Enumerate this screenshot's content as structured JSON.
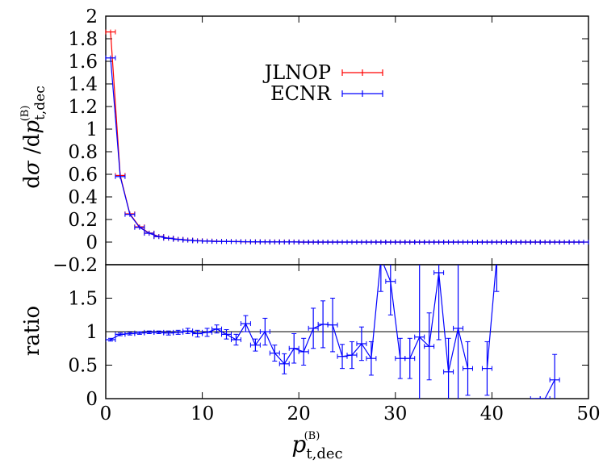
{
  "chart_data": [
    {
      "type": "line",
      "panel": "main",
      "ylabel_parts": {
        "pre": "d",
        "sigma": "σ",
        "mid": " /d",
        "p": "p",
        "sub": "t,dec",
        "sup": "(B)"
      },
      "xlim": [
        0,
        50
      ],
      "ylim": [
        -0.2,
        2
      ],
      "yticks": [
        -0.2,
        0,
        0.2,
        0.4,
        0.6,
        0.8,
        1,
        1.2,
        1.4,
        1.6,
        1.8,
        2
      ],
      "ytick_labels": [
        "−0.2",
        "0",
        "0.2",
        "0.4",
        "0.6",
        "0.8",
        "1",
        "1.2",
        "1.4",
        "1.6",
        "1.8",
        "2"
      ],
      "legend_position": "top-right",
      "series": [
        {
          "name": "JLNOP",
          "color": "#ff0000",
          "x": [
            0.5,
            1.5,
            2.5,
            3.5,
            4.5,
            5.5,
            6.5,
            7.5,
            8.5,
            9.5,
            10.5,
            11.5,
            12.5,
            13.5,
            14.5,
            15.5,
            16.5,
            17.5,
            18.5,
            19.5,
            20.5,
            21.5,
            22.5,
            23.5,
            24.5,
            25.5,
            26.5,
            27.5,
            28.5,
            29.5,
            30.5,
            31.5,
            32.5,
            33.5,
            34.5,
            35.5,
            36.5,
            37.5,
            38.5,
            39.5,
            40.5,
            41.5,
            42.5,
            43.5,
            44.5,
            45.5,
            46.5,
            47.5,
            48.5,
            49.5
          ],
          "y": [
            1.86,
            0.59,
            0.25,
            0.135,
            0.08,
            0.05,
            0.035,
            0.025,
            0.018,
            0.012,
            0.009,
            0.007,
            0.005,
            0.004,
            0.003,
            0.0025,
            0.002,
            0.0015,
            0.001,
            0.001,
            0,
            0,
            0,
            0,
            0,
            0,
            0,
            0,
            0,
            0,
            0,
            0,
            0,
            0,
            0,
            0,
            0,
            0,
            0,
            0,
            0,
            0,
            0,
            0,
            0,
            0,
            0,
            0,
            0,
            0
          ]
        },
        {
          "name": "ECNR",
          "color": "#0000ff",
          "x": [
            0.5,
            1.5,
            2.5,
            3.5,
            4.5,
            5.5,
            6.5,
            7.5,
            8.5,
            9.5,
            10.5,
            11.5,
            12.5,
            13.5,
            14.5,
            15.5,
            16.5,
            17.5,
            18.5,
            19.5,
            20.5,
            21.5,
            22.5,
            23.5,
            24.5,
            25.5,
            26.5,
            27.5,
            28.5,
            29.5,
            30.5,
            31.5,
            32.5,
            33.5,
            34.5,
            35.5,
            36.5,
            37.5,
            38.5,
            39.5,
            40.5,
            41.5,
            42.5,
            43.5,
            44.5,
            45.5,
            46.5,
            47.5,
            48.5,
            49.5
          ],
          "y": [
            1.63,
            0.58,
            0.245,
            0.13,
            0.078,
            0.048,
            0.034,
            0.024,
            0.017,
            0.011,
            0.008,
            0.006,
            0.005,
            0.004,
            0.003,
            0.0025,
            0.002,
            0.0015,
            0.001,
            0.001,
            0,
            0,
            0,
            0,
            0,
            0,
            0,
            0,
            0,
            0,
            0,
            0,
            0,
            0,
            0,
            0,
            0,
            0,
            0,
            0,
            0,
            0,
            0,
            0,
            0,
            0,
            0,
            0,
            0,
            0
          ]
        }
      ]
    },
    {
      "type": "line",
      "panel": "ratio",
      "ylabel": "ratio",
      "xlabel_parts": {
        "p": "p",
        "sub": "t,dec",
        "sup": "(B)"
      },
      "xlim": [
        0,
        50
      ],
      "ylim": [
        0,
        2
      ],
      "xticks": [
        0,
        10,
        20,
        30,
        40,
        50
      ],
      "xtick_labels": [
        "0",
        "10",
        "20",
        "30",
        "40",
        "50"
      ],
      "yticks": [
        0,
        0.5,
        1,
        1.5
      ],
      "ytick_labels": [
        "0",
        "0.5",
        "1",
        "1.5"
      ],
      "reference_line": 1,
      "series": [
        {
          "name": "ratio",
          "color": "#0000ff",
          "points": [
            {
              "x": 0.5,
              "y": 0.88,
              "e": 0.02
            },
            {
              "x": 1.5,
              "y": 0.96,
              "e": 0.02
            },
            {
              "x": 2.5,
              "y": 0.97,
              "e": 0.02
            },
            {
              "x": 3.5,
              "y": 0.98,
              "e": 0.02
            },
            {
              "x": 4.5,
              "y": 0.99,
              "e": 0.02
            },
            {
              "x": 5.5,
              "y": 0.99,
              "e": 0.02
            },
            {
              "x": 6.5,
              "y": 0.98,
              "e": 0.03
            },
            {
              "x": 7.5,
              "y": 0.99,
              "e": 0.03
            },
            {
              "x": 8.5,
              "y": 1.01,
              "e": 0.04
            },
            {
              "x": 9.5,
              "y": 0.97,
              "e": 0.05
            },
            {
              "x": 10.5,
              "y": 0.99,
              "e": 0.06
            },
            {
              "x": 11.5,
              "y": 1.04,
              "e": 0.06
            },
            {
              "x": 12.5,
              "y": 0.96,
              "e": 0.07
            },
            {
              "x": 13.5,
              "y": 0.88,
              "e": 0.08
            },
            {
              "x": 14.5,
              "y": 1.12,
              "e": 0.12
            },
            {
              "x": 15.5,
              "y": 0.8,
              "e": 0.09
            },
            {
              "x": 16.5,
              "y": 1.0,
              "e": 0.2
            },
            {
              "x": 17.5,
              "y": 0.68,
              "e": 0.12
            },
            {
              "x": 18.5,
              "y": 0.52,
              "e": 0.15
            },
            {
              "x": 19.5,
              "y": 0.75,
              "e": 0.22
            },
            {
              "x": 20.5,
              "y": 0.7,
              "e": 0.2
            },
            {
              "x": 21.5,
              "y": 1.05,
              "e": 0.3
            },
            {
              "x": 22.5,
              "y": 1.11,
              "e": 0.35
            },
            {
              "x": 23.5,
              "y": 1.1,
              "e": 0.4
            },
            {
              "x": 24.5,
              "y": 0.63,
              "e": 0.18
            },
            {
              "x": 25.5,
              "y": 0.65,
              "e": 0.2
            },
            {
              "x": 26.5,
              "y": 0.82,
              "e": 0.25
            },
            {
              "x": 27.5,
              "y": 0.6,
              "e": 0.25
            },
            {
              "x": 28.5,
              "y": 2.1,
              "e": 0.5
            },
            {
              "x": 29.5,
              "y": 1.75,
              "e": 0.5
            },
            {
              "x": 30.5,
              "y": 0.6,
              "e": 0.3
            },
            {
              "x": 31.5,
              "y": 0.6,
              "e": 0.3
            },
            {
              "x": 32.5,
              "y": 0.92,
              "e": 1.2
            },
            {
              "x": 33.5,
              "y": 0.78,
              "e": 0.5
            },
            {
              "x": 34.5,
              "y": 1.88,
              "e": 1.0
            },
            {
              "x": 35.5,
              "y": 0.4,
              "e": 0.5
            },
            {
              "x": 36.5,
              "y": 1.05,
              "e": 1.2
            },
            {
              "x": 37.5,
              "y": 0.45,
              "e": 0.4
            },
            {
              "x": 39.5,
              "y": 0.45,
              "e": 0.4
            },
            {
              "x": 40.5,
              "y": 2.1,
              "e": 0.5
            },
            {
              "x": 44.5,
              "y": 0.0,
              "e": 0.0
            },
            {
              "x": 45.5,
              "y": 0.0,
              "e": 0.0
            },
            {
              "x": 46.5,
              "y": 0.28,
              "e": 0.38
            }
          ]
        }
      ]
    }
  ]
}
